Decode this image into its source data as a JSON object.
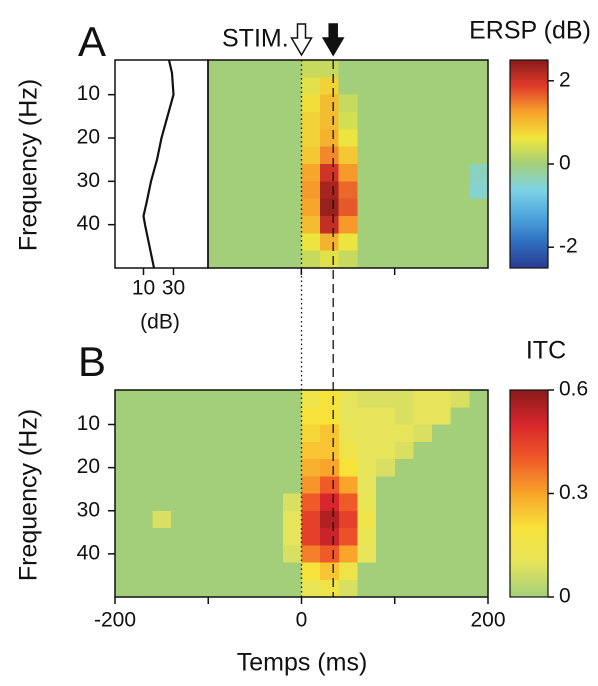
{
  "chart_data": [
    {
      "type": "heatmap",
      "title": "A",
      "annotation": "STIM.",
      "ylabel": "Frequency (Hz)",
      "colorbar_label": "ERSP (dB)",
      "xlim": [
        -100,
        200
      ],
      "xticks": [
        0,
        100
      ],
      "ylim": [
        2,
        50
      ],
      "yticks": [
        10,
        20,
        30,
        40
      ],
      "clim": [
        -2.5,
        2.5
      ],
      "cticks": [
        -2,
        0,
        2
      ],
      "colormap": [
        "#2a3a92",
        "#2f6fc0",
        "#4fa6de",
        "#7dd3e4",
        "#a3cf7b",
        "#f0e63c",
        "#f7a22a",
        "#e03a2a",
        "#8a1b1b"
      ],
      "vlines": [
        {
          "x": 0,
          "style": "dotted"
        },
        {
          "x": 34,
          "style": "dashed"
        }
      ],
      "x": [
        -90,
        -70,
        -50,
        -30,
        -10,
        10,
        30,
        50,
        70,
        90,
        110,
        130,
        150,
        170,
        190
      ],
      "y": [
        4,
        8,
        12,
        16,
        20,
        24,
        28,
        32,
        36,
        40,
        44,
        48
      ],
      "values": [
        [
          0,
          0,
          0,
          0,
          0,
          0.3,
          0.3,
          0,
          0,
          0,
          0,
          0,
          0,
          0,
          0
        ],
        [
          0,
          0,
          0,
          0,
          0,
          0.5,
          0.8,
          0,
          0,
          0,
          0,
          0,
          0,
          0,
          0
        ],
        [
          0,
          0,
          0,
          0,
          0,
          0.7,
          1.0,
          0.3,
          0,
          0,
          0,
          0,
          0,
          0,
          0
        ],
        [
          0,
          0,
          0,
          0,
          0,
          0.8,
          1.0,
          0.4,
          0,
          0,
          0,
          0,
          0,
          0,
          0
        ],
        [
          0,
          0,
          0,
          0,
          0,
          0.8,
          1.1,
          0.6,
          0,
          0,
          0,
          0,
          0,
          0,
          0
        ],
        [
          0,
          0,
          0,
          0,
          0,
          0.9,
          1.4,
          0.9,
          0,
          0,
          0,
          0,
          0,
          0,
          0
        ],
        [
          0,
          0,
          0,
          0,
          0,
          1.2,
          2.0,
          1.3,
          0,
          0,
          0,
          0,
          0,
          0,
          -0.4
        ],
        [
          0,
          0,
          0,
          0,
          0,
          1.3,
          2.3,
          1.6,
          0,
          0,
          0,
          0,
          0,
          0,
          -0.5
        ],
        [
          0,
          0,
          0,
          0,
          0,
          1.2,
          2.4,
          1.7,
          0,
          0,
          0,
          0,
          0,
          0,
          0
        ],
        [
          0,
          0,
          0,
          0,
          0,
          1.0,
          2.1,
          1.3,
          0,
          0,
          0,
          0,
          0,
          0,
          0
        ],
        [
          0,
          0,
          0,
          0,
          0,
          0.6,
          1.1,
          0.6,
          0,
          0,
          0,
          0,
          0,
          0,
          0
        ],
        [
          0,
          0,
          0,
          0,
          0,
          0.3,
          0.5,
          0.3,
          0,
          0,
          0,
          0,
          0,
          0,
          0
        ]
      ]
    },
    {
      "type": "heatmap",
      "title": "B",
      "ylabel": "Frequency (Hz)",
      "xlabel": "Temps (ms)",
      "colorbar_label": "ITC",
      "xlim": [
        -200,
        200
      ],
      "xticks": [
        -200,
        0,
        200
      ],
      "xminor": [
        -100,
        100
      ],
      "ylim": [
        2,
        50
      ],
      "yticks": [
        10,
        20,
        30,
        40
      ],
      "clim": [
        0,
        0.6
      ],
      "cticks": [
        0,
        0.3,
        0.6
      ],
      "colormap": [
        "#a3cf7b",
        "#e6e45a",
        "#f7e23a",
        "#f8a52a",
        "#f05a28",
        "#d7262c",
        "#8a1b1b"
      ],
      "x": [
        -190,
        -170,
        -150,
        -130,
        -110,
        -90,
        -70,
        -50,
        -30,
        -10,
        10,
        30,
        50,
        70,
        90,
        110,
        130,
        150,
        170,
        190
      ],
      "y": [
        4,
        8,
        12,
        16,
        20,
        24,
        28,
        32,
        36,
        40,
        44,
        48
      ],
      "values": [
        [
          0,
          0,
          0,
          0,
          0,
          0,
          0,
          0,
          0,
          0,
          0.15,
          0.2,
          0.1,
          0.08,
          0.08,
          0.08,
          0.1,
          0.1,
          0.08,
          0
        ],
        [
          0,
          0,
          0,
          0,
          0,
          0,
          0,
          0,
          0,
          0,
          0.2,
          0.2,
          0.1,
          0.1,
          0.1,
          0.08,
          0.1,
          0.1,
          0,
          0
        ],
        [
          0,
          0,
          0,
          0,
          0,
          0,
          0,
          0,
          0,
          0,
          0.22,
          0.25,
          0.12,
          0.1,
          0.1,
          0.1,
          0.08,
          0,
          0,
          0
        ],
        [
          0,
          0,
          0,
          0,
          0,
          0,
          0,
          0,
          0,
          0,
          0.25,
          0.25,
          0.15,
          0.1,
          0.1,
          0.08,
          0,
          0,
          0,
          0
        ],
        [
          0,
          0,
          0,
          0,
          0,
          0,
          0,
          0,
          0,
          0,
          0.28,
          0.3,
          0.2,
          0.1,
          0.08,
          0,
          0,
          0,
          0,
          0
        ],
        [
          0,
          0,
          0,
          0,
          0,
          0,
          0,
          0,
          0,
          0,
          0.32,
          0.4,
          0.3,
          0.1,
          0,
          0,
          0,
          0,
          0,
          0
        ],
        [
          0,
          0,
          0,
          0,
          0,
          0,
          0,
          0,
          0,
          0.08,
          0.4,
          0.5,
          0.4,
          0.12,
          0,
          0,
          0,
          0,
          0,
          0
        ],
        [
          0,
          0,
          0.08,
          0,
          0,
          0,
          0,
          0,
          0,
          0.1,
          0.45,
          0.55,
          0.45,
          0.15,
          0,
          0,
          0,
          0,
          0,
          0
        ],
        [
          0,
          0,
          0,
          0,
          0,
          0,
          0,
          0,
          0,
          0.1,
          0.45,
          0.52,
          0.42,
          0.12,
          0,
          0,
          0,
          0,
          0,
          0
        ],
        [
          0,
          0,
          0,
          0,
          0,
          0,
          0,
          0,
          0,
          0.08,
          0.35,
          0.4,
          0.3,
          0.1,
          0,
          0,
          0,
          0,
          0,
          0
        ],
        [
          0,
          0,
          0,
          0,
          0,
          0,
          0,
          0,
          0,
          0,
          0.2,
          0.25,
          0.15,
          0,
          0,
          0,
          0,
          0,
          0,
          0
        ],
        [
          0,
          0,
          0,
          0,
          0,
          0,
          0,
          0,
          0,
          0,
          0.12,
          0.15,
          0.08,
          0,
          0,
          0,
          0,
          0,
          0,
          0
        ]
      ]
    },
    {
      "type": "line",
      "xlabel": "(dB)",
      "color": "#111111",
      "x": [
        2,
        5,
        10,
        15,
        20,
        25,
        30,
        35,
        38,
        40,
        45,
        50
      ],
      "values": [
        27,
        29,
        30,
        26,
        22,
        19,
        15,
        12,
        10,
        11,
        14,
        17
      ],
      "xlim": [
        2,
        50
      ],
      "ylim": [
        -9,
        53
      ],
      "yticks": [
        10,
        30
      ]
    }
  ]
}
